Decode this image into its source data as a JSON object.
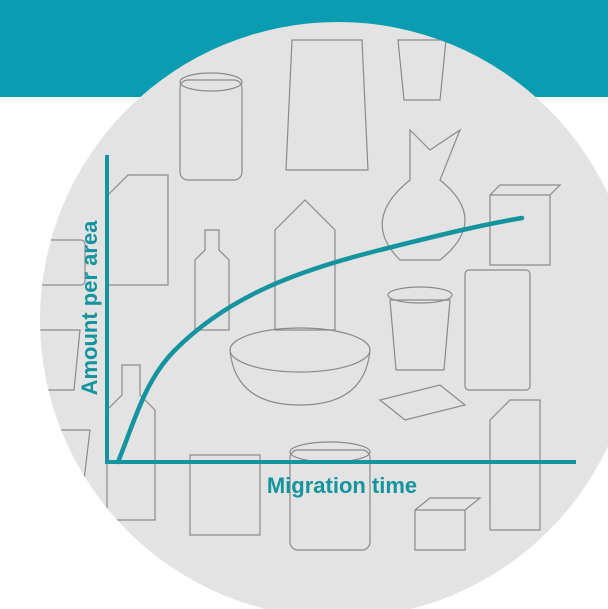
{
  "y_axis_label": "Amount per area",
  "x_axis_label": "Migration time"
}
